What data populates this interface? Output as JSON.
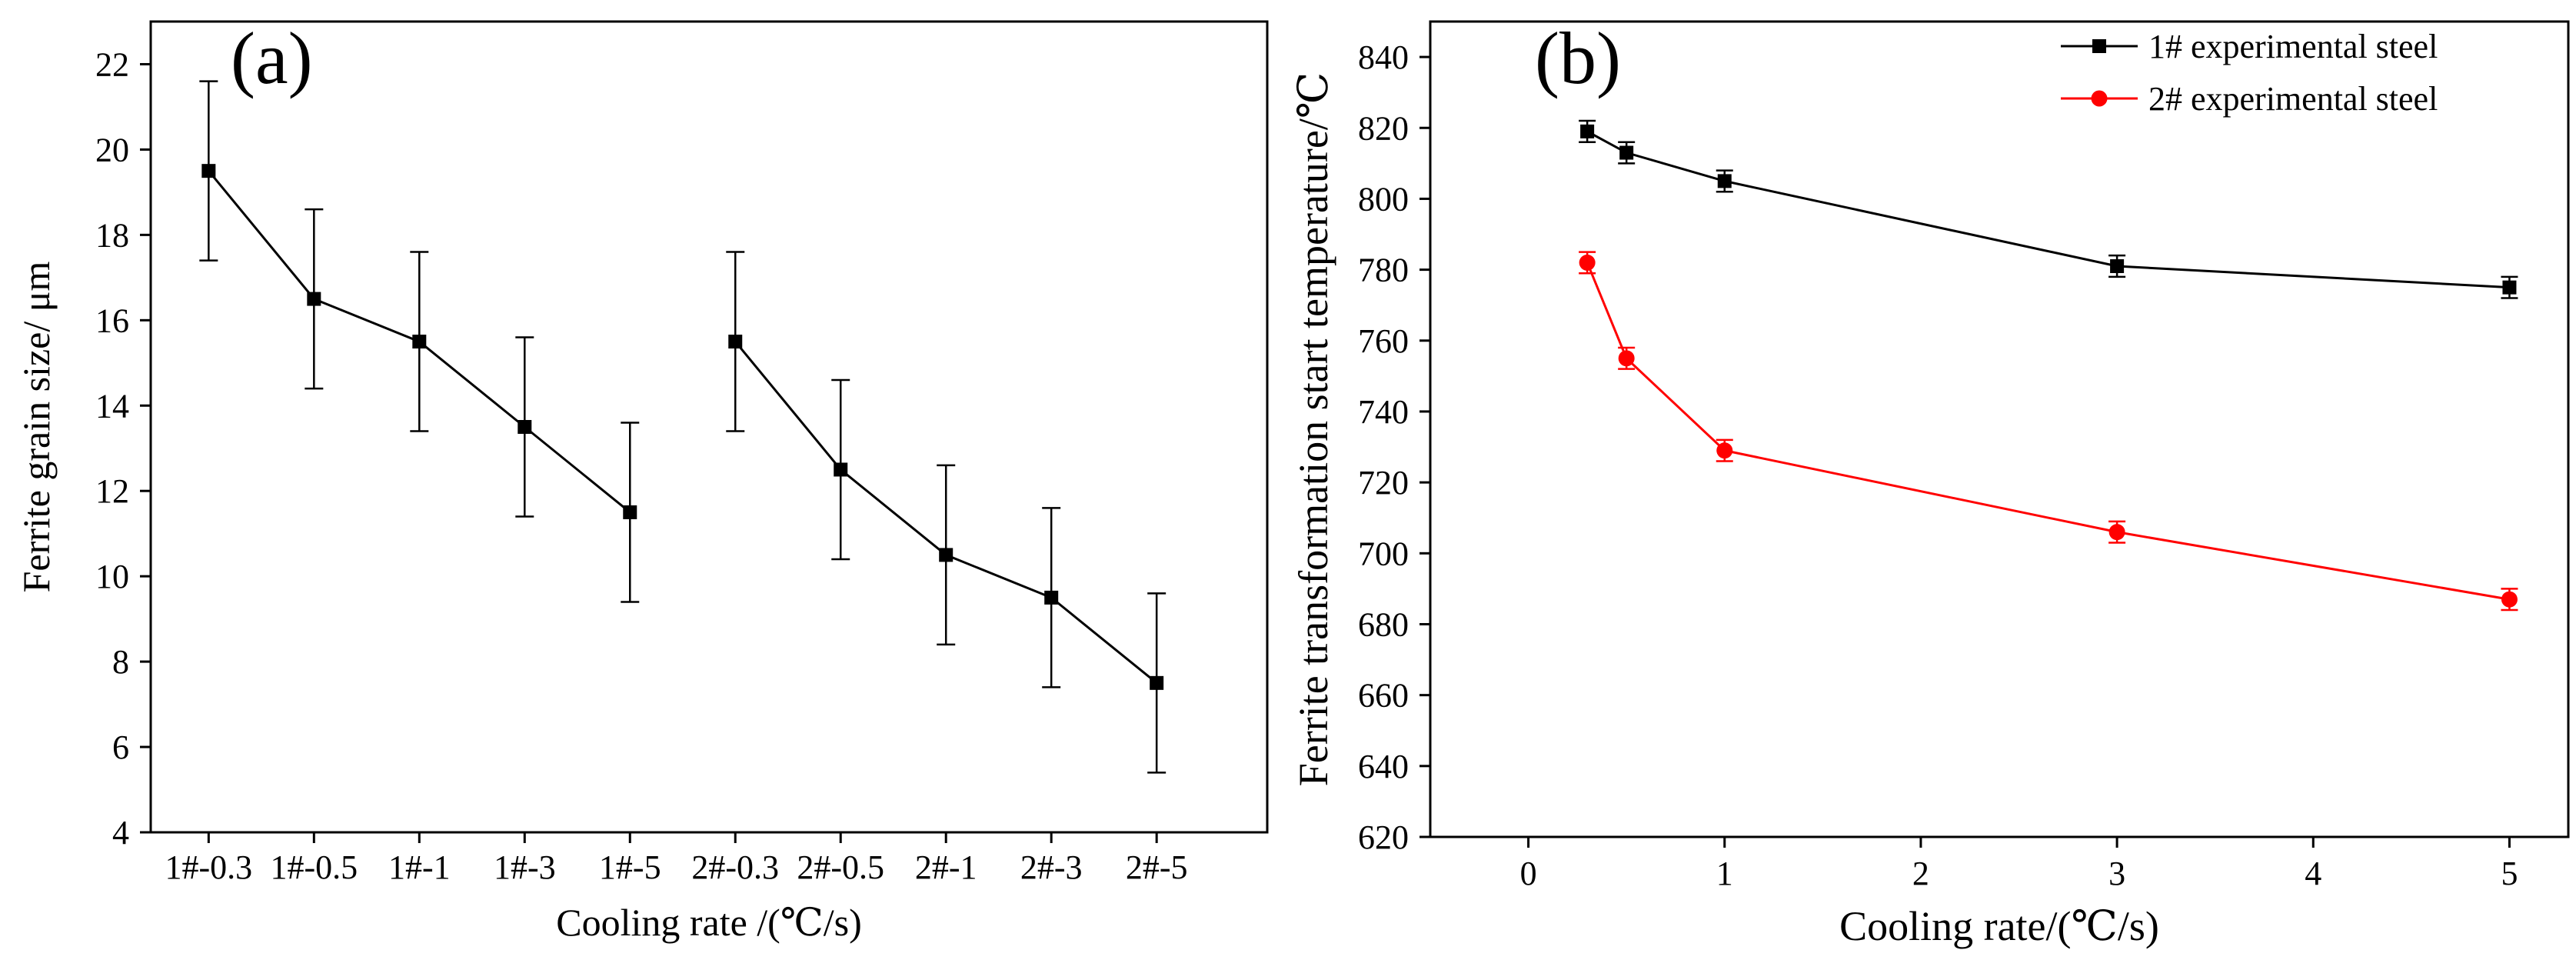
{
  "chart_data": [
    {
      "type": "line",
      "panel_label": "(a)",
      "xlabel": "Cooling rate /(℃/s)",
      "ylabel": "Ferrite grain size/ μm",
      "categories": [
        "1#-0.3",
        "1#-0.5",
        "1#-1",
        "1#-3",
        "1#-5",
        "2#-0.3",
        "2#-0.5",
        "2#-1",
        "2#-3",
        "2#-5"
      ],
      "tick_labels": [
        "1#-0.3",
        "1#-0.5",
        "1#-1",
        "1#-3",
        "1#-5",
        "2#-0.3",
        "2#-0.5",
        "2#-1",
        "2#-3",
        "2#-5"
      ],
      "ylim": [
        4,
        23
      ],
      "yticks": [
        4,
        6,
        8,
        10,
        12,
        14,
        16,
        18,
        20,
        22
      ],
      "series": [
        {
          "values": [
            19.5,
            16.5,
            15.5,
            13.5,
            11.5,
            15.5,
            12.5,
            10.5,
            9.5,
            7.5
          ],
          "errors": [
            2.1,
            2.1,
            2.1,
            2.1,
            2.1,
            2.1,
            2.1,
            2.1,
            2.1,
            2.1
          ],
          "segments": [
            [
              0,
              4
            ],
            [
              5,
              9
            ]
          ],
          "color": "#000000",
          "marker": "square"
        }
      ]
    },
    {
      "type": "line",
      "panel_label": "(b)",
      "xlabel": "Cooling rate/(℃/s)",
      "ylabel": "Ferrite transformation start temperature/℃",
      "xlim": [
        -0.5,
        5.3
      ],
      "ylim": [
        620,
        850
      ],
      "xticks": [
        0,
        1,
        2,
        3,
        4,
        5
      ],
      "yticks": [
        620,
        640,
        660,
        680,
        700,
        720,
        740,
        760,
        780,
        800,
        820,
        840
      ],
      "legend_position": "top-right",
      "series": [
        {
          "name": "1# experimental steel",
          "color": "#000000",
          "marker": "square",
          "x": [
            0.3,
            0.5,
            1,
            3,
            5
          ],
          "y": [
            819,
            813,
            805,
            781,
            775
          ],
          "errors": [
            3,
            3,
            3,
            3,
            3
          ]
        },
        {
          "name": "2# experimental steel",
          "color": "#ff0000",
          "marker": "circle",
          "x": [
            0.3,
            0.5,
            1,
            3,
            5
          ],
          "y": [
            782,
            755,
            729,
            706,
            687
          ],
          "errors": [
            3,
            3,
            3,
            3,
            3
          ]
        }
      ]
    }
  ]
}
